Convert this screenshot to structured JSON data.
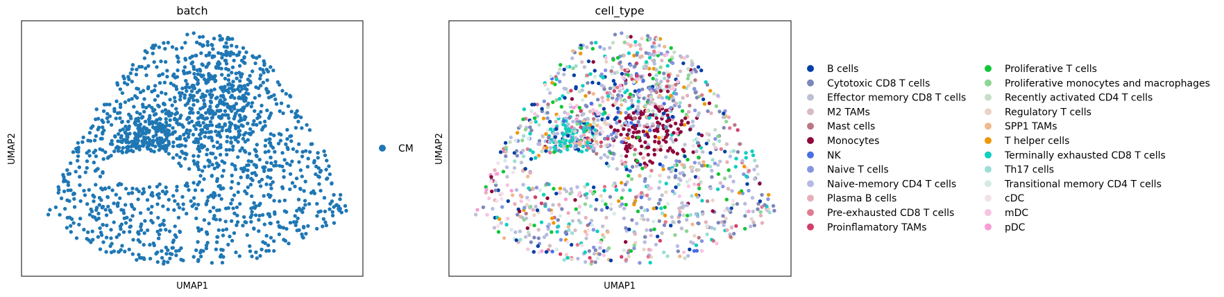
{
  "chart_data": [
    {
      "type": "scatter",
      "title": "batch",
      "xlabel": "UMAP1",
      "ylabel": "UMAP2",
      "xticks": [],
      "yticks": [],
      "grid": false,
      "legend": {
        "placement": "right",
        "entries": [
          {
            "name": "CM",
            "color": "#1f77b4"
          }
        ]
      },
      "note_points": "UMAP embedding, roughly 1,600 cells, all colored by batch CM"
    },
    {
      "type": "scatter",
      "title": "cell_type",
      "xlabel": "UMAP1",
      "ylabel": "UMAP2",
      "xticks": [],
      "yticks": [],
      "grid": false,
      "legend": {
        "placement": "right",
        "columns": 2,
        "entries": [
          {
            "name": "B cells",
            "color": "#023fa5"
          },
          {
            "name": "Cytotoxic CD8 T cells",
            "color": "#7d87b9"
          },
          {
            "name": "Effector memory CD8 T cells",
            "color": "#bec1d4"
          },
          {
            "name": "M2 TAMs",
            "color": "#d6bcc0"
          },
          {
            "name": "Mast cells",
            "color": "#bb7784"
          },
          {
            "name": "Monocytes",
            "color": "#8e063b"
          },
          {
            "name": "NK",
            "color": "#4a6fe3"
          },
          {
            "name": "Naive T cells",
            "color": "#8595e1"
          },
          {
            "name": "Naive-memory CD4 T cells",
            "color": "#b5bbe3"
          },
          {
            "name": "Plasma B cells",
            "color": "#e6afb9"
          },
          {
            "name": "Pre-exhausted CD8 T cells",
            "color": "#e07b91"
          },
          {
            "name": "Proinflamatory TAMs",
            "color": "#d33f6a"
          },
          {
            "name": "Proliferative T cells",
            "color": "#11c638"
          },
          {
            "name": "Proliferative monocytes and macrophages",
            "color": "#8dd593"
          },
          {
            "name": "Recently activated CD4 T cells",
            "color": "#c6dec7"
          },
          {
            "name": "Regulatory T cells",
            "color": "#ead3c6"
          },
          {
            "name": "SPP1 TAMs",
            "color": "#f0b98d"
          },
          {
            "name": "T helper cells",
            "color": "#ef9708"
          },
          {
            "name": "Terminally exhausted CD8 T cells",
            "color": "#0fcfc0"
          },
          {
            "name": "Th17 cells",
            "color": "#9cded6"
          },
          {
            "name": "Transitional memory CD4 T cells",
            "color": "#d5eae7"
          },
          {
            "name": "cDC",
            "color": "#f3e1eb"
          },
          {
            "name": "mDC",
            "color": "#f6c4e1"
          },
          {
            "name": "pDC",
            "color": "#f79cd4"
          }
        ]
      }
    }
  ]
}
